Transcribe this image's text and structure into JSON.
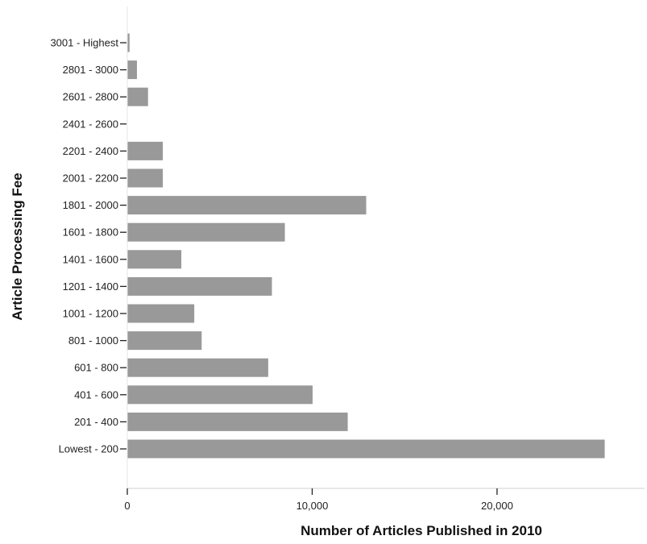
{
  "chart_data": {
    "type": "bar",
    "orientation": "horizontal",
    "categories": [
      "Lowest - 200",
      "201 - 400",
      "401 - 600",
      "601 - 800",
      "801 - 1000",
      "1001 - 1200",
      "1201 - 1400",
      "1401 - 1600",
      "1601 - 1800",
      "1801 - 2000",
      "2001 - 2200",
      "2201 - 2400",
      "2401 - 2600",
      "2601 - 2800",
      "2801 - 3000",
      "3001 - Highest"
    ],
    "values": [
      25800,
      11900,
      10000,
      7600,
      4000,
      3600,
      7800,
      2900,
      8500,
      12900,
      1900,
      1900,
      0,
      1100,
      500,
      100
    ],
    "xlabel": "Number of Articles Published in 2010",
    "ylabel": "Article Processing Fee",
    "xlim": [
      0,
      28000
    ],
    "xticks": [
      0,
      10000,
      20000
    ],
    "xtick_labels": [
      "0",
      "10,000",
      "20,000"
    ],
    "grid": false,
    "bar_color": "#999999"
  }
}
